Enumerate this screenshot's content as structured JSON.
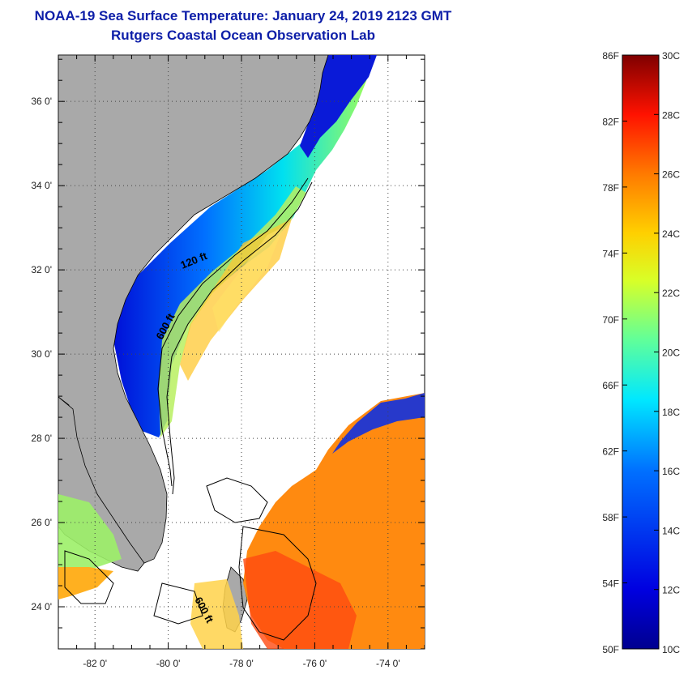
{
  "title": {
    "line1": "NOAA-19 Sea Surface Temperature:  January 24, 2019 2123 GMT",
    "line2": "Rutgers Coastal Ocean Observation Lab"
  },
  "map": {
    "lat_labels": [
      "36 0'",
      "34 0'",
      "32 0'",
      "30 0'",
      "28 0'",
      "26 0'",
      "24 0'"
    ],
    "lon_labels": [
      "-82 0'",
      "-80 0'",
      "-78 0'",
      "-76 0'",
      "-74 0'"
    ],
    "lat_values": [
      36,
      34,
      32,
      30,
      28,
      26,
      24
    ],
    "lon_values": [
      -82,
      -80,
      -78,
      -76,
      -74
    ],
    "lat_range": [
      23,
      37.1
    ],
    "lon_range": [
      -83,
      -73
    ],
    "contour_labels": [
      "120 ft",
      "600 ft",
      "600 ft"
    ],
    "land_color": "#a9a9a9"
  },
  "colorbar": {
    "fahrenheit_labels": [
      "86F",
      "82F",
      "78F",
      "74F",
      "70F",
      "66F",
      "62F",
      "58F",
      "54F",
      "50F"
    ],
    "celsius_labels": [
      "30C",
      "28C",
      "26C",
      "24C",
      "22C",
      "20C",
      "18C",
      "16C",
      "14C",
      "12C",
      "10C"
    ],
    "fahrenheit_values": [
      86,
      82,
      78,
      74,
      70,
      66,
      62,
      58,
      54,
      50
    ],
    "celsius_values": [
      30,
      28,
      26,
      24,
      22,
      20,
      18,
      16,
      14,
      12,
      10
    ],
    "range_c": [
      10,
      30
    ],
    "colors": [
      "#7f0000",
      "#ff0000",
      "#ff8000",
      "#ffff00",
      "#80ff80",
      "#00ffff",
      "#0080ff",
      "#0000ff",
      "#00008f"
    ]
  }
}
